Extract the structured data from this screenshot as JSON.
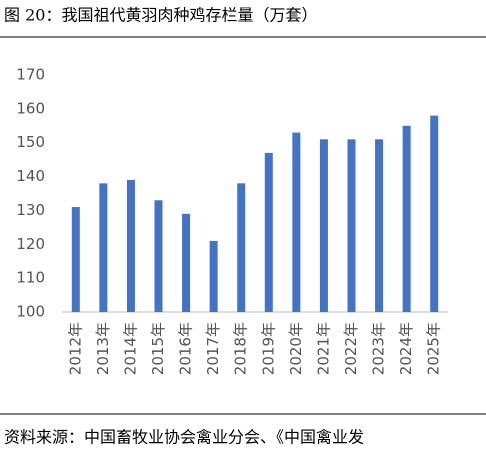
{
  "chart_data": {
    "type": "bar",
    "title": "图 20：我国祖代黄羽肉种鸡存栏量（万套）",
    "categories": [
      "2012年",
      "2013年",
      "2014年",
      "2015年",
      "2016年",
      "2017年",
      "2018年",
      "2019年",
      "2020年",
      "2021年",
      "2022年",
      "2023年",
      "2024年",
      "2025年"
    ],
    "values": [
      131,
      138,
      139,
      133,
      129,
      121,
      138,
      147,
      153,
      151,
      151,
      151,
      155,
      158
    ],
    "color": "#4472c4",
    "ylim": [
      100,
      170
    ],
    "yticks": [
      100,
      110,
      120,
      130,
      140,
      150,
      160,
      170
    ],
    "grid": false,
    "source": "资料来源：中国畜牧业协会禽业分会、《中国禽业发"
  }
}
